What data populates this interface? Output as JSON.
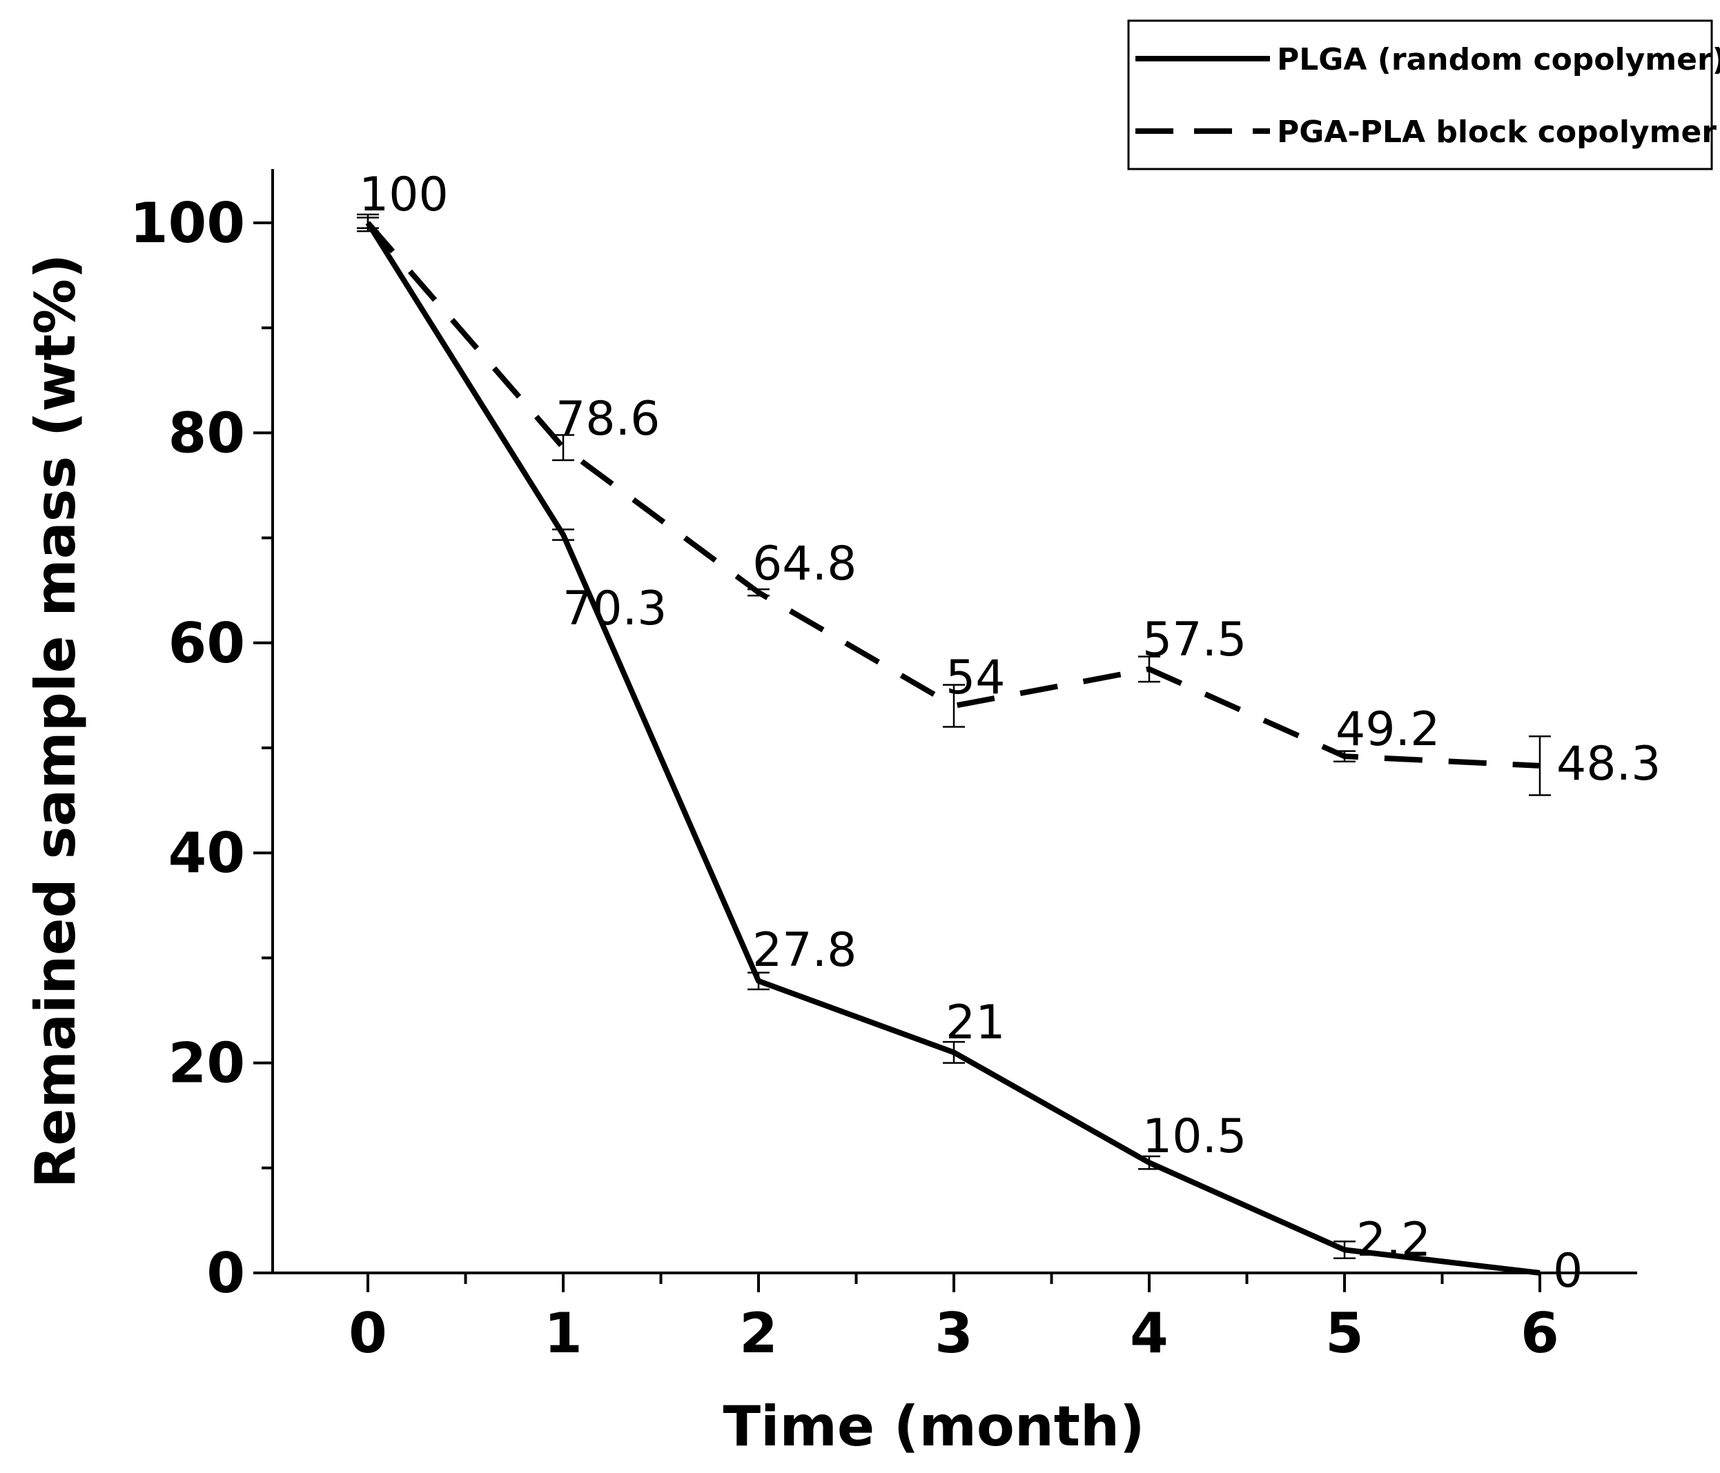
{
  "chart_data": {
    "type": "line",
    "title": "",
    "xlabel": "Time (month)",
    "ylabel": "Remained sample mass (wt%)",
    "xlim": [
      -0.5,
      6.5
    ],
    "ylim": [
      0,
      105
    ],
    "x_ticks": [
      "0",
      "1",
      "2",
      "3",
      "4",
      "5",
      "6"
    ],
    "y_ticks": [
      "0",
      "20",
      "40",
      "60",
      "80",
      "100"
    ],
    "grid": false,
    "legend_position": "top-right",
    "x": [
      0,
      1,
      2,
      3,
      4,
      5,
      6
    ],
    "series": [
      {
        "name": "PLGA (random copolymer)",
        "style": "solid",
        "values": [
          100,
          70.3,
          27.8,
          21,
          10.5,
          2.2,
          0
        ],
        "labels": [
          "100",
          "70.3",
          "27.8",
          "21",
          "10.5",
          "2.2",
          "0"
        ],
        "errors": [
          0.8,
          0.5,
          0.8,
          1.0,
          0.6,
          0.8,
          0
        ]
      },
      {
        "name": "PGA-PLA block copolymer",
        "style": "dashed",
        "values": [
          100,
          78.6,
          64.8,
          54,
          57.5,
          49.2,
          48.3
        ],
        "labels": [
          "",
          "78.6",
          "64.8",
          "54",
          "57.5",
          "49.2",
          "48.3"
        ],
        "errors": [
          0.5,
          1.2,
          0.3,
          2.0,
          1.2,
          0.5,
          2.8
        ]
      }
    ]
  }
}
